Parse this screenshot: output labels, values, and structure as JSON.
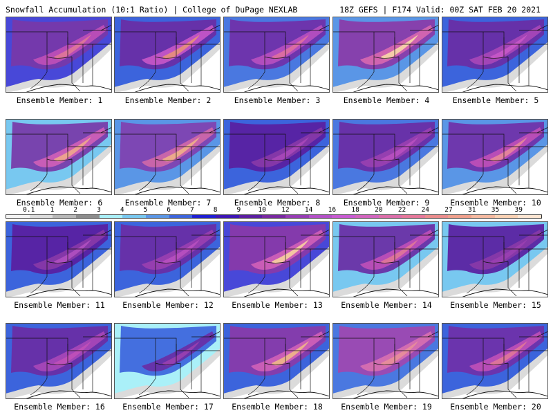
{
  "header": {
    "left": "Snowfall Accumulation (10:1 Ratio) | College of DuPage NEXLAB",
    "right": "18Z GEFS | F174 Valid: 00Z SAT FEB 20 2021"
  },
  "colorbar": {
    "ticks": [
      "0.1",
      "1",
      "2",
      "3",
      "4",
      "5",
      "6",
      "7",
      "8",
      "9",
      "10",
      "12",
      "14",
      "16",
      "18",
      "20",
      "22",
      "24",
      "27",
      "31",
      "35",
      "39"
    ],
    "colors": [
      "#f4f4f4",
      "#dcdcdc",
      "#b8b8b8",
      "#8c8c8c",
      "#aaf0f8",
      "#78c8f0",
      "#5a96e6",
      "#3c64dc",
      "#1e1ed2",
      "#3c14b4",
      "#5a1ea0",
      "#7828a0",
      "#963cb4",
      "#b450c8",
      "#c85ad2",
      "#d264be",
      "#dc6eaa",
      "#e6789a",
      "#eb8c8c",
      "#f0a08c",
      "#f5b9a0",
      "#fad2b4",
      "#fde6d2"
    ]
  },
  "panel_title_prefix": "Ensemble Member:",
  "members": [
    {
      "label": "Ensemble Member: 1",
      "colors": [
        "#4848d8",
        "#7838a8",
        "#c050b8"
      ],
      "peak": "#e07898"
    },
    {
      "label": "Ensemble Member: 2",
      "colors": [
        "#3c64dc",
        "#6a2ca4",
        "#c858c8"
      ],
      "peak": "#e8907a"
    },
    {
      "label": "Ensemble Member: 3",
      "colors": [
        "#4a78e0",
        "#7030a8",
        "#b850c0"
      ],
      "peak": "#e0709e"
    },
    {
      "label": "Ensemble Member: 4",
      "colors": [
        "#5a96e6",
        "#8a3aa8",
        "#d868b0"
      ],
      "peak": "#f8d8a8"
    },
    {
      "label": "Ensemble Member: 5",
      "colors": [
        "#3c64dc",
        "#6a2ca4",
        "#a848b8"
      ],
      "peak": "#c858c8"
    },
    {
      "label": "Ensemble Member: 6",
      "colors": [
        "#78c8f0",
        "#7838a8",
        "#d060b8"
      ],
      "peak": "#f0a88c"
    },
    {
      "label": "Ensemble Member: 7",
      "colors": [
        "#5a96e6",
        "#8040b0",
        "#d068a8"
      ],
      "peak": "#f0b088"
    },
    {
      "label": "Ensemble Member: 8",
      "colors": [
        "#3c64dc",
        "#5a1ea0",
        "#8a3aa8"
      ],
      "peak": "#a848b8"
    },
    {
      "label": "Ensemble Member: 9",
      "colors": [
        "#4a78e0",
        "#6a2ca4",
        "#9a40b0"
      ],
      "peak": "#b850c0"
    },
    {
      "label": "Ensemble Member: 10",
      "colors": [
        "#5a96e6",
        "#7030a8",
        "#c050b8"
      ],
      "peak": "#e8889a"
    },
    {
      "label": "Ensemble Member: 11",
      "colors": [
        "#3c64dc",
        "#5a1ea0",
        "#8a3aa8"
      ],
      "peak": "#b050c0"
    },
    {
      "label": "Ensemble Member: 12",
      "colors": [
        "#3c64dc",
        "#6a2ca4",
        "#9a40b0"
      ],
      "peak": "#b850c0"
    },
    {
      "label": "Ensemble Member: 13",
      "colors": [
        "#4848d8",
        "#8a3aa8",
        "#d060b8"
      ],
      "peak": "#f8d0a0"
    },
    {
      "label": "Ensemble Member: 14",
      "colors": [
        "#78c8f0",
        "#6a2ca4",
        "#c050b8"
      ],
      "peak": "#e07898"
    },
    {
      "label": "Ensemble Member: 15",
      "colors": [
        "#78c8f0",
        "#5a1ea0",
        "#8a3aa8"
      ],
      "peak": "#9a40b0"
    },
    {
      "label": "Ensemble Member: 16",
      "colors": [
        "#3c64dc",
        "#6a2ca4",
        "#a848b8"
      ],
      "peak": "#c050b8"
    },
    {
      "label": "Ensemble Member: 17",
      "colors": [
        "#aaf0f8",
        "#3c64dc",
        "#6a2ca4"
      ],
      "peak": "#9a40b0"
    },
    {
      "label": "Ensemble Member: 18",
      "colors": [
        "#3c64dc",
        "#8a3aa8",
        "#d060b8"
      ],
      "peak": "#f0b888"
    },
    {
      "label": "Ensemble Member: 19",
      "colors": [
        "#4a78e0",
        "#a048b0",
        "#d870b0"
      ],
      "peak": "#e8909a"
    },
    {
      "label": "Ensemble Member: 20",
      "colors": [
        "#3c64dc",
        "#7030a8",
        "#c050b8"
      ],
      "peak": "#e07898"
    }
  ]
}
